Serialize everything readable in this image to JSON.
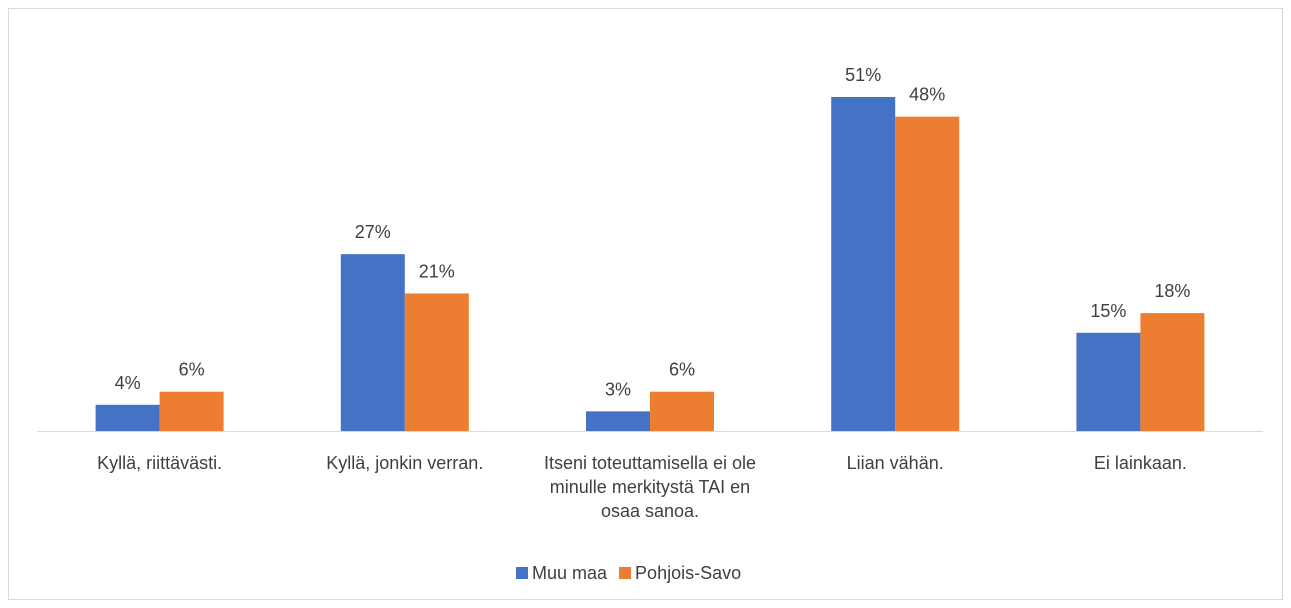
{
  "chart_data": {
    "type": "bar",
    "categories": [
      "Kyllä, riittävästi.",
      "Kyllä, jonkin verran.",
      "Itseni toteuttamisella ei ole minulle merkitystä TAI en osaa sanoa.",
      "Liian vähän.",
      "Ei lainkaan."
    ],
    "series": [
      {
        "name": "Muu maa",
        "color": "#4472c4",
        "values": [
          4,
          27,
          3,
          51,
          15
        ],
        "value_labels": [
          "4%",
          "27%",
          "3%",
          "51%",
          "15%"
        ]
      },
      {
        "name": "Pohjois-Savo",
        "color": "#ed7d31",
        "values": [
          6,
          21,
          6,
          48,
          18
        ],
        "value_labels": [
          "6%",
          "21%",
          "6%",
          "48%",
          "18%"
        ]
      }
    ],
    "legend": "bottom"
  }
}
